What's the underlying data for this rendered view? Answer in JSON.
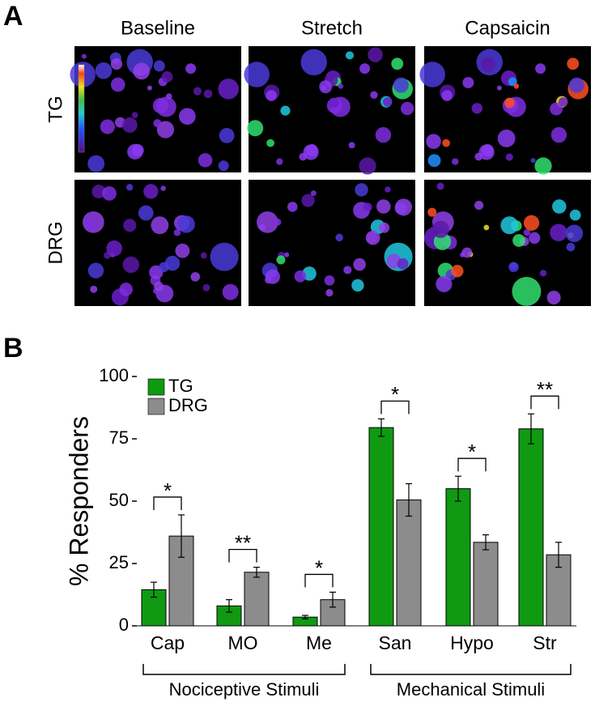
{
  "panel_labels": [
    "A",
    "B"
  ],
  "panel_a": {
    "columns": [
      "Baseline",
      "Stretch",
      "Capsaicin"
    ],
    "rows": [
      "TG",
      "DRG"
    ]
  },
  "chart_data": {
    "type": "bar",
    "y_label": "% Responders",
    "categories": [
      "Cap",
      "MO",
      "Me",
      "San",
      "Hypo",
      "Str"
    ],
    "series": [
      {
        "name": "TG",
        "color": "#0f9a12",
        "values": [
          14.5,
          8,
          3.5,
          79.5,
          55,
          79
        ],
        "errors": [
          3,
          2.5,
          0.7,
          3.5,
          5,
          6
        ]
      },
      {
        "name": "DRG",
        "color": "#8c8c8c",
        "values": [
          36,
          21.5,
          10.5,
          50.5,
          33.5,
          28.5
        ],
        "errors": [
          8.5,
          2,
          3,
          6.5,
          3,
          5
        ]
      }
    ],
    "significance": [
      "*",
      "**",
      "*",
      "*",
      "*",
      "**"
    ],
    "group_labels": [
      "Nociceptive Stimuli",
      "Mechanical Stimuli"
    ],
    "ylim": [
      0,
      100
    ],
    "yticks": [
      0,
      25,
      50,
      75,
      100
    ],
    "legend": "top-left"
  }
}
